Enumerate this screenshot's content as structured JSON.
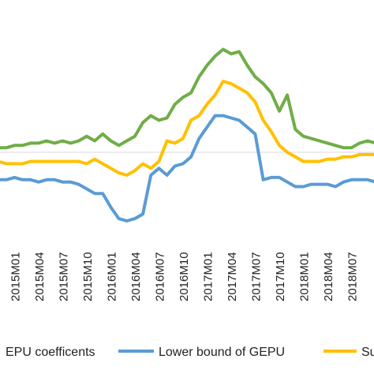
{
  "chart_data": {
    "type": "line",
    "x": [
      "2014M11",
      "2014M12",
      "2015M01",
      "2015M02",
      "2015M03",
      "2015M04",
      "2015M05",
      "2015M06",
      "2015M07",
      "2015M08",
      "2015M09",
      "2015M10",
      "2015M11",
      "2015M12",
      "2016M01",
      "2016M02",
      "2016M03",
      "2016M04",
      "2016M05",
      "2016M06",
      "2016M07",
      "2016M08",
      "2016M09",
      "2016M10",
      "2016M11",
      "2016M12",
      "2017M01",
      "2017M02",
      "2017M03",
      "2017M04",
      "2017M05",
      "2017M06",
      "2017M07",
      "2017M08",
      "2017M09",
      "2017M10",
      "2017M11",
      "2017M12",
      "2018M01",
      "2018M02",
      "2018M03",
      "2018M04",
      "2018M05",
      "2018M06",
      "2018M07",
      "2018M08",
      "2018M09",
      "2018M10"
    ],
    "tick_labels": [
      "2015M01",
      "2015M04",
      "2015M07",
      "2015M10",
      "2016M01",
      "2016M04",
      "2016M07",
      "2016M10",
      "2017M01",
      "2017M04",
      "2017M07",
      "2017M10",
      "2018M01",
      "2018M04",
      "2018M07"
    ],
    "zero_line": true,
    "grid": false,
    "legend_position": "bottom",
    "series": [
      {
        "name": "GEPU coefficents",
        "color": "#70ad47",
        "legend_label": "GEPU coefficents",
        "values": [
          0.02,
          0.02,
          0.03,
          0.03,
          0.04,
          0.04,
          0.05,
          0.04,
          0.05,
          0.04,
          0.05,
          0.07,
          0.05,
          0.08,
          0.05,
          0.03,
          0.05,
          0.07,
          0.13,
          0.16,
          0.14,
          0.15,
          0.21,
          0.24,
          0.26,
          0.33,
          0.38,
          0.42,
          0.45,
          0.43,
          0.44,
          0.38,
          0.33,
          0.3,
          0.26,
          0.18,
          0.25,
          0.1,
          0.07,
          0.06,
          0.05,
          0.04,
          0.03,
          0.02,
          0.02,
          0.04,
          0.05,
          0.04
        ]
      },
      {
        "name": "Lower bound of GEPU",
        "color": "#5b9bd5",
        "legend_label": "Lower bound of GEPU",
        "values": [
          -0.12,
          -0.12,
          -0.11,
          -0.12,
          -0.12,
          -0.13,
          -0.12,
          -0.12,
          -0.13,
          -0.13,
          -0.14,
          -0.16,
          -0.18,
          -0.18,
          -0.24,
          -0.29,
          -0.3,
          -0.29,
          -0.27,
          -0.1,
          -0.07,
          -0.1,
          -0.06,
          -0.05,
          -0.02,
          0.06,
          0.11,
          0.16,
          0.16,
          0.15,
          0.14,
          0.11,
          0.08,
          -0.12,
          -0.11,
          -0.11,
          -0.13,
          -0.15,
          -0.15,
          -0.14,
          -0.14,
          -0.14,
          -0.15,
          -0.13,
          -0.12,
          -0.12,
          -0.12,
          -0.13
        ]
      },
      {
        "name": "Su",
        "color": "#ffc000",
        "legend_label": "Su",
        "values": [
          -0.04,
          -0.05,
          -0.05,
          -0.05,
          -0.04,
          -0.04,
          -0.04,
          -0.04,
          -0.04,
          -0.04,
          -0.04,
          -0.05,
          -0.03,
          -0.05,
          -0.07,
          -0.09,
          -0.1,
          -0.08,
          -0.05,
          -0.07,
          -0.04,
          0.05,
          0.04,
          0.06,
          0.14,
          0.16,
          0.21,
          0.25,
          0.31,
          0.3,
          0.28,
          0.26,
          0.22,
          0.14,
          0.09,
          0.03,
          0.0,
          -0.02,
          -0.04,
          -0.04,
          -0.04,
          -0.03,
          -0.03,
          -0.02,
          -0.02,
          -0.01,
          -0.01,
          -0.01
        ]
      }
    ]
  }
}
